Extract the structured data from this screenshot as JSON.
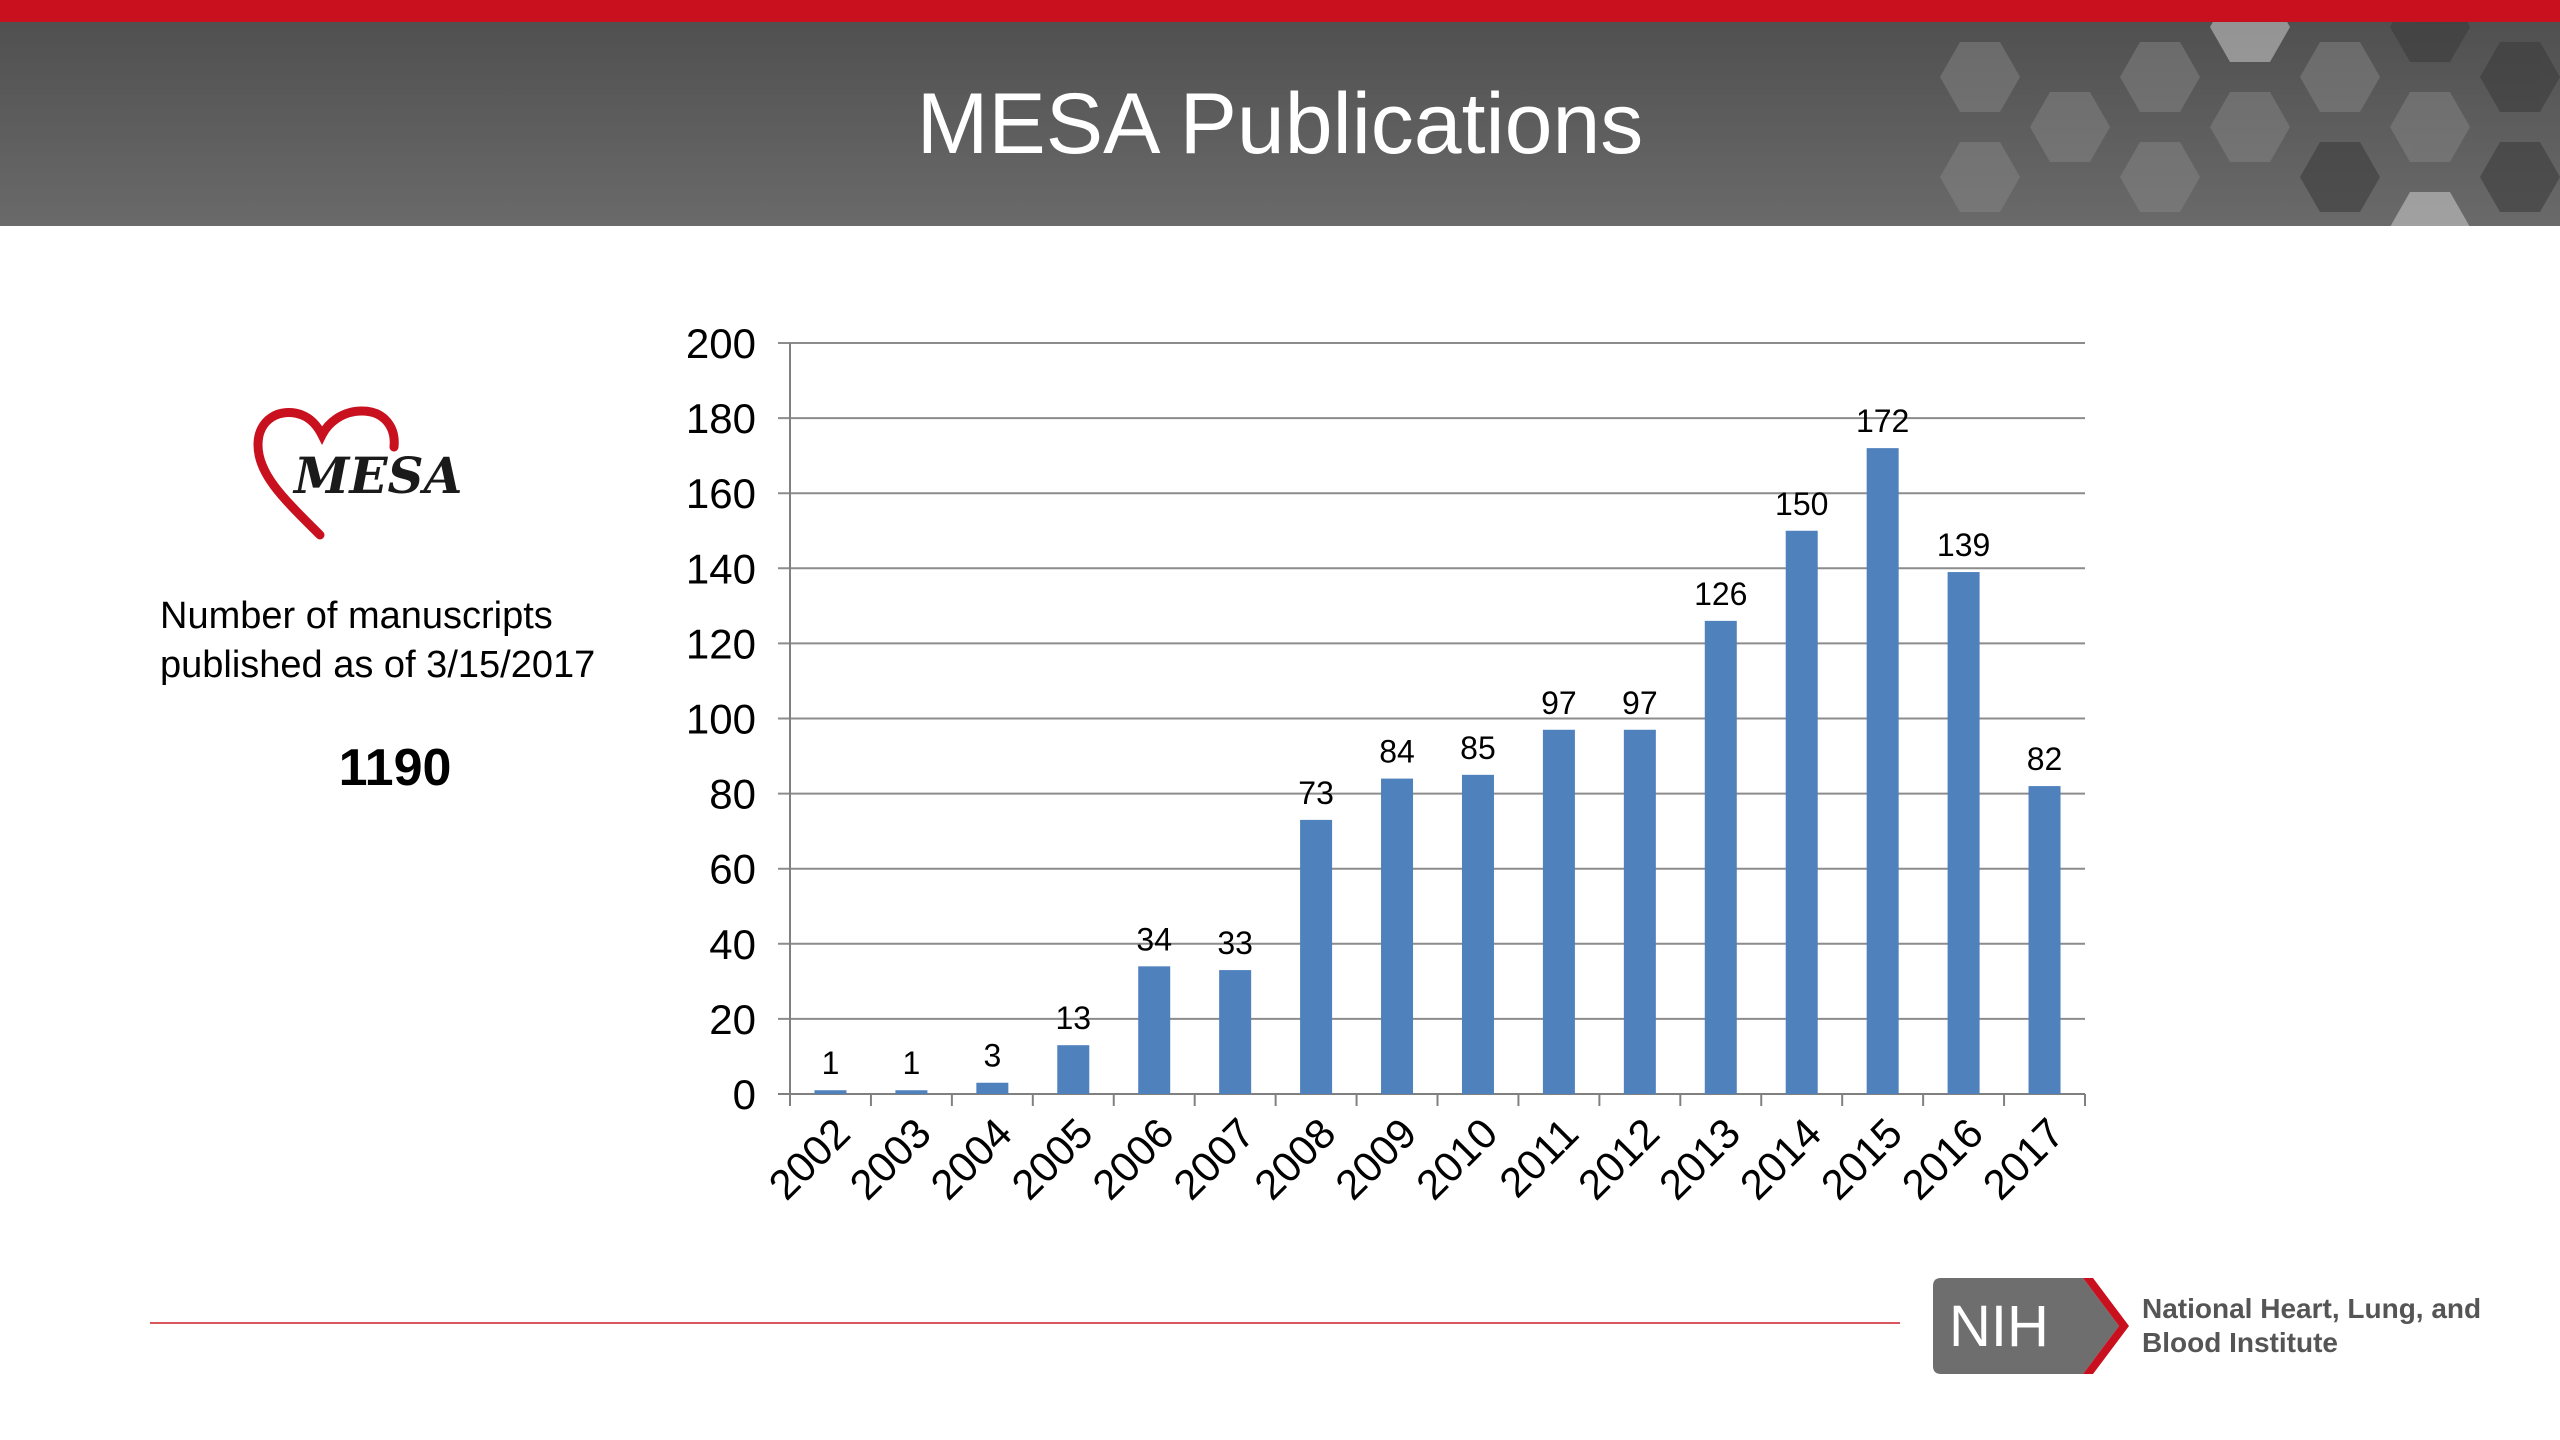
{
  "slide": {
    "title": "MESA Publications",
    "caption": "Number of manuscripts published as of 3/15/2017",
    "total": "1190",
    "logo_text": "MESA"
  },
  "footer": {
    "nih_logo_text": "NIH",
    "institute_name": "National Heart, Lung, and Blood Institute"
  },
  "colors": {
    "bar": "#4f81bd",
    "accent_red": "#c8101e",
    "header_gray": "#5c5c5c"
  },
  "chart_data": {
    "type": "bar",
    "categories": [
      "2002",
      "2003",
      "2004",
      "2005",
      "2006",
      "2007",
      "2008",
      "2009",
      "2010",
      "2011",
      "2012",
      "2013",
      "2014",
      "2015",
      "2016",
      "2017"
    ],
    "values": [
      1,
      1,
      3,
      13,
      34,
      33,
      73,
      84,
      85,
      97,
      97,
      126,
      150,
      172,
      139,
      82
    ],
    "data_labels": true,
    "ylim": [
      0,
      200
    ],
    "yticks": [
      0,
      20,
      40,
      60,
      80,
      100,
      120,
      140,
      160,
      180,
      200
    ],
    "grid": true,
    "legend": "none",
    "title": "",
    "xlabel": "",
    "ylabel": ""
  }
}
